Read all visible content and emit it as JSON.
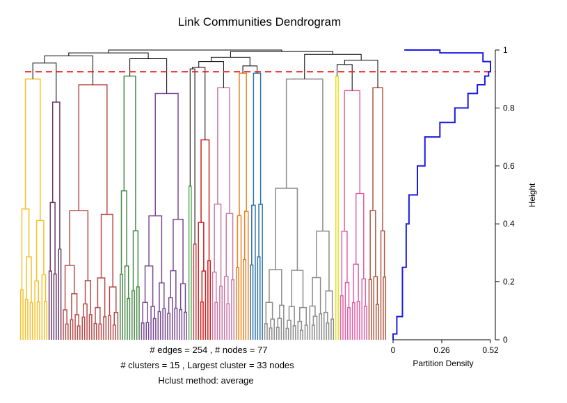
{
  "chart_data": {
    "type": "dendrogram",
    "title": "Link Communities Dendrogram",
    "y_axis": {
      "label": "Height",
      "range": [
        0,
        1
      ],
      "ticks": [
        "0",
        "0.2",
        "0.4",
        "0.6",
        "0.8",
        "1"
      ]
    },
    "density_axis": {
      "label": "Partition Density",
      "range": [
        0,
        0.52
      ],
      "ticks": [
        "0",
        "0.26",
        "0.52"
      ]
    },
    "cut_height": 0.925,
    "stats": {
      "edges_line": "# edges =  254 ,    # nodes =  77",
      "clusters_line": "# clusters =  15 ,   Largest cluster =  33  nodes",
      "method_line": "Hclust method:  average"
    },
    "clusters": [
      {
        "color": "#f5c128",
        "leaves": 12,
        "top": 0.9
      },
      {
        "color": "#6b3a6b",
        "leaves": 6,
        "top": 0.82
      },
      {
        "color": "#b84b4b",
        "leaves": 24,
        "top": 0.88
      },
      {
        "color": "#4a8a4a",
        "leaves": 9,
        "top": 0.91
      },
      {
        "color": "#7a4a94",
        "leaves": 20,
        "top": 0.85
      },
      {
        "color": "#5aaa5a",
        "leaves": 2,
        "top": 0.53
      },
      {
        "color": "#b84b4b",
        "leaves": 2,
        "top": 0.33
      },
      {
        "color": "#d01c1c",
        "leaves": 6,
        "top": 0.69
      },
      {
        "color": "#c87aa8",
        "leaves": 10,
        "top": 0.87
      },
      {
        "color": "#e8801e",
        "leaves": 6,
        "top": 0.92
      },
      {
        "color": "#2e72a8",
        "leaves": 6,
        "top": 0.92
      },
      {
        "color": "#8c8c8c",
        "leaves": 30,
        "top": 0.9
      },
      {
        "color": "#e8e020",
        "leaves": 2,
        "top": 0.91
      },
      {
        "color": "#e060a8",
        "leaves": 12,
        "top": 0.86
      },
      {
        "color": "#b05840",
        "leaves": 8,
        "top": 0.87
      }
    ],
    "partition_density": [
      {
        "height": 0.0,
        "density": 0.0
      },
      {
        "height": 0.02,
        "density": 0.02
      },
      {
        "height": 0.08,
        "density": 0.05
      },
      {
        "height": 0.25,
        "density": 0.07
      },
      {
        "height": 0.4,
        "density": 0.085
      },
      {
        "height": 0.5,
        "density": 0.13
      },
      {
        "height": 0.6,
        "density": 0.17
      },
      {
        "height": 0.7,
        "density": 0.25
      },
      {
        "height": 0.75,
        "density": 0.33
      },
      {
        "height": 0.8,
        "density": 0.4
      },
      {
        "height": 0.85,
        "density": 0.45
      },
      {
        "height": 0.88,
        "density": 0.49
      },
      {
        "height": 0.91,
        "density": 0.51
      },
      {
        "height": 0.925,
        "density": 0.52
      },
      {
        "height": 0.96,
        "density": 0.48
      },
      {
        "height": 0.99,
        "density": 0.25
      },
      {
        "height": 1.0,
        "density": 0.06
      }
    ],
    "colors": {
      "cut_line": "#e82020",
      "density_line": "#1a1ae6",
      "upper_tree": "#000000"
    }
  }
}
